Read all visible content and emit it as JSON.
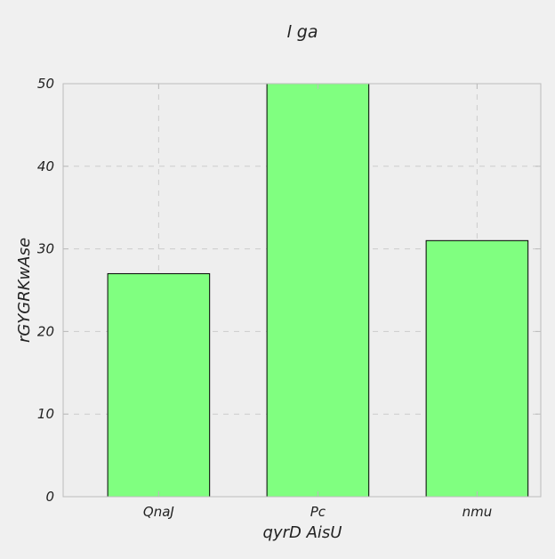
{
  "chart_data": {
    "type": "bar",
    "title": "l ga",
    "xlabel": "qyrD AisU",
    "ylabel": "rGYGRKwAse",
    "categories": [
      "QnaJ",
      "Pc",
      "nmu"
    ],
    "values": [
      27,
      50,
      31
    ],
    "ylim": [
      0,
      50
    ],
    "yticks": [
      0,
      10,
      20,
      30,
      40,
      50
    ],
    "grid": true,
    "colors": {
      "bar_fill": "#80ff80",
      "bar_edge": "#000000",
      "plot_background": "#eeeeee",
      "figure_background": "#f0f0f0",
      "grid": "#cccccc",
      "axes_edge": "#bcbcbc"
    }
  }
}
